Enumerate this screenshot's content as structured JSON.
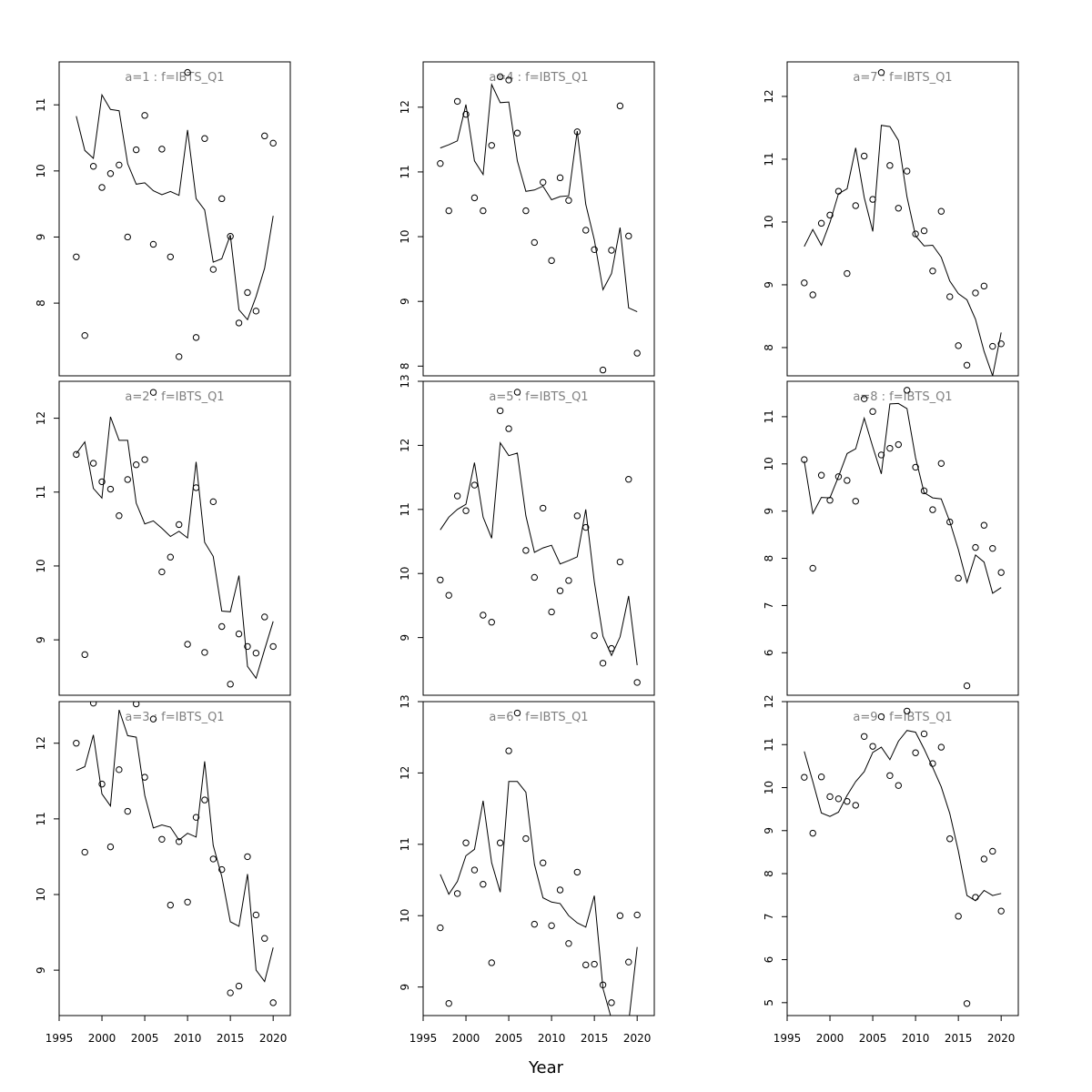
{
  "figure": {
    "xlabel": "Year",
    "colors": {
      "title": "#808080",
      "line": "#000000",
      "points": "#000000"
    }
  },
  "chart_data": [
    {
      "type": "scatter",
      "title": "a=1 : f=IBTS_Q1",
      "x": [
        1997,
        1998,
        1999,
        2000,
        2001,
        2002,
        2003,
        2004,
        2005,
        2006,
        2007,
        2008,
        2009,
        2010,
        2011,
        2012,
        2013,
        2014,
        2015,
        2016,
        2017,
        2018,
        2019,
        2020
      ],
      "ylim": [
        6.9,
        11.65
      ],
      "yticks": [
        8,
        9,
        10,
        11
      ],
      "series": [
        {
          "kind": "line",
          "values": [
            10.83,
            10.31,
            10.19,
            11.15,
            10.93,
            10.91,
            10.11,
            9.8,
            9.82,
            9.7,
            9.64,
            9.69,
            9.63,
            10.62,
            9.58,
            9.41,
            8.62,
            8.67,
            9.03,
            7.9,
            7.75,
            8.1,
            8.53,
            9.32
          ]
        },
        {
          "kind": "points",
          "values": [
            8.7,
            7.51,
            10.07,
            9.75,
            9.96,
            10.09,
            9.0,
            10.32,
            10.84,
            8.89,
            10.33,
            8.7,
            7.19,
            11.49,
            7.48,
            10.49,
            8.51,
            9.58,
            9.01,
            7.7,
            8.16,
            7.88,
            10.53,
            10.42
          ]
        }
      ]
    },
    {
      "type": "scatter",
      "title": "a=2 : f=IBTS_Q1",
      "x": [
        1997,
        1998,
        1999,
        2000,
        2001,
        2002,
        2003,
        2004,
        2005,
        2006,
        2007,
        2008,
        2009,
        2010,
        2011,
        2012,
        2013,
        2014,
        2015,
        2016,
        2017,
        2018,
        2019,
        2020
      ],
      "ylim": [
        8.25,
        12.5
      ],
      "yticks": [
        9,
        10,
        11,
        12
      ],
      "series": [
        {
          "kind": "line",
          "values": [
            11.52,
            11.68,
            11.05,
            10.92,
            12.02,
            11.7,
            11.7,
            10.85,
            10.57,
            10.61,
            10.51,
            10.4,
            10.47,
            10.38,
            11.41,
            10.32,
            10.13,
            9.39,
            9.38,
            9.87,
            8.64,
            8.48,
            8.87,
            9.25
          ]
        },
        {
          "kind": "points",
          "values": [
            11.51,
            8.8,
            11.39,
            11.14,
            11.04,
            10.68,
            11.17,
            11.37,
            11.44,
            12.35,
            9.92,
            10.12,
            10.56,
            8.94,
            11.06,
            8.83,
            10.87,
            9.18,
            8.4,
            9.08,
            8.91,
            8.82,
            9.31,
            8.91
          ]
        }
      ]
    },
    {
      "type": "scatter",
      "title": "a=3 : f=IBTS_Q1",
      "x": [
        1997,
        1998,
        1999,
        2000,
        2001,
        2002,
        2003,
        2004,
        2005,
        2006,
        2007,
        2008,
        2009,
        2010,
        2011,
        2012,
        2013,
        2014,
        2015,
        2016,
        2017,
        2018,
        2019,
        2020
      ],
      "ylim": [
        8.4,
        12.55
      ],
      "yticks": [
        9,
        10,
        11,
        12
      ],
      "series": [
        {
          "kind": "line",
          "values": [
            11.64,
            11.69,
            12.11,
            11.33,
            11.17,
            12.44,
            12.1,
            12.08,
            11.31,
            10.88,
            10.92,
            10.89,
            10.72,
            10.81,
            10.76,
            11.76,
            10.65,
            10.24,
            9.64,
            9.58,
            10.27,
            9.0,
            8.85,
            9.3
          ]
        },
        {
          "kind": "points",
          "values": [
            12.0,
            10.56,
            12.53,
            11.46,
            10.63,
            11.65,
            11.1,
            12.52,
            11.55,
            12.32,
            10.73,
            9.86,
            10.7,
            9.9,
            11.02,
            11.25,
            10.47,
            10.33,
            8.7,
            8.79,
            10.5,
            9.73,
            9.42,
            8.57
          ]
        }
      ]
    },
    {
      "type": "scatter",
      "title": "a=4 : f=IBTS_Q1",
      "x": [
        1997,
        1998,
        1999,
        2000,
        2001,
        2002,
        2003,
        2004,
        2005,
        2006,
        2007,
        2008,
        2009,
        2010,
        2011,
        2012,
        2013,
        2014,
        2015,
        2016,
        2017,
        2018,
        2019,
        2020
      ],
      "ylim": [
        7.85,
        12.7
      ],
      "yticks": [
        8,
        9,
        10,
        11,
        12
      ],
      "series": [
        {
          "kind": "line",
          "values": [
            11.37,
            11.42,
            11.48,
            12.04,
            11.17,
            10.96,
            12.35,
            12.07,
            12.08,
            11.17,
            10.7,
            10.72,
            10.78,
            10.57,
            10.62,
            10.63,
            11.63,
            10.5,
            9.95,
            9.18,
            9.43,
            10.14,
            8.9,
            8.84
          ]
        },
        {
          "kind": "points",
          "values": [
            11.13,
            10.4,
            12.09,
            11.89,
            10.6,
            10.4,
            11.41,
            12.47,
            12.42,
            11.6,
            10.4,
            9.91,
            10.84,
            9.63,
            10.91,
            10.56,
            11.62,
            10.1,
            9.8,
            7.94,
            9.79,
            12.02,
            10.01,
            8.2
          ]
        }
      ]
    },
    {
      "type": "scatter",
      "title": "a=5 : f=IBTS_Q1",
      "x": [
        1997,
        1998,
        1999,
        2000,
        2001,
        2002,
        2003,
        2004,
        2005,
        2006,
        2007,
        2008,
        2009,
        2010,
        2011,
        2012,
        2013,
        2014,
        2015,
        2016,
        2017,
        2018,
        2019,
        2020
      ],
      "ylim": [
        8.1,
        13.0
      ],
      "yticks": [
        9,
        10,
        11,
        12,
        13
      ],
      "series": [
        {
          "kind": "line",
          "values": [
            10.68,
            10.88,
            11.0,
            11.08,
            11.73,
            10.88,
            10.55,
            12.04,
            11.84,
            11.88,
            10.9,
            10.33,
            10.4,
            10.44,
            10.15,
            10.2,
            10.26,
            11.0,
            9.87,
            9.02,
            8.72,
            9.01,
            9.65,
            8.57
          ]
        },
        {
          "kind": "points",
          "values": [
            9.9,
            9.66,
            11.21,
            10.98,
            11.38,
            9.35,
            9.24,
            12.54,
            12.26,
            12.83,
            10.36,
            9.94,
            11.02,
            9.4,
            9.73,
            9.89,
            10.9,
            10.72,
            9.03,
            8.6,
            8.83,
            10.18,
            11.47,
            8.3
          ]
        }
      ]
    },
    {
      "type": "scatter",
      "title": "a=6 : f=IBTS_Q1",
      "x": [
        1997,
        1998,
        1999,
        2000,
        2001,
        2002,
        2003,
        2004,
        2005,
        2006,
        2007,
        2008,
        2009,
        2010,
        2011,
        2012,
        2013,
        2014,
        2015,
        2016,
        2017,
        2018,
        2019,
        2020
      ],
      "ylim": [
        8.6,
        13.0
      ],
      "yticks": [
        9,
        10,
        11,
        12,
        13
      ],
      "series": [
        {
          "kind": "line",
          "values": [
            10.58,
            10.3,
            10.48,
            10.84,
            10.93,
            11.61,
            10.74,
            10.33,
            11.88,
            11.88,
            11.73,
            10.72,
            10.25,
            10.19,
            10.17,
            10.0,
            9.9,
            9.84,
            10.28,
            8.98,
            8.55,
            8.17,
            8.5,
            9.56
          ]
        },
        {
          "kind": "points",
          "values": [
            9.83,
            8.77,
            10.31,
            11.02,
            10.64,
            10.44,
            9.34,
            11.02,
            12.31,
            12.84,
            11.08,
            9.88,
            10.74,
            9.86,
            10.36,
            9.61,
            10.61,
            9.31,
            9.32,
            9.03,
            8.78,
            10.0,
            9.35,
            10.01
          ]
        }
      ]
    },
    {
      "type": "scatter",
      "title": "a=7 : f=IBTS_Q1",
      "x": [
        1997,
        1998,
        1999,
        2000,
        2001,
        2002,
        2003,
        2004,
        2005,
        2006,
        2007,
        2008,
        2009,
        2010,
        2011,
        2012,
        2013,
        2014,
        2015,
        2016,
        2017,
        2018,
        2019,
        2020
      ],
      "ylim": [
        7.55,
        12.55
      ],
      "yticks": [
        8,
        9,
        10,
        11,
        12
      ],
      "series": [
        {
          "kind": "line",
          "values": [
            9.61,
            9.88,
            9.63,
            9.99,
            10.45,
            10.53,
            11.18,
            10.39,
            9.85,
            11.54,
            11.52,
            11.3,
            10.4,
            9.78,
            9.62,
            9.63,
            9.44,
            9.06,
            8.86,
            8.76,
            8.45,
            7.94,
            7.55,
            8.24
          ]
        },
        {
          "kind": "points",
          "values": [
            9.03,
            8.84,
            9.98,
            10.11,
            10.49,
            9.18,
            10.26,
            11.05,
            10.36,
            12.38,
            10.9,
            10.22,
            10.81,
            9.81,
            9.86,
            9.22,
            10.17,
            8.81,
            8.03,
            7.72,
            8.87,
            8.98,
            8.02,
            8.06
          ]
        }
      ]
    },
    {
      "type": "scatter",
      "title": "a=8 : f=IBTS_Q1",
      "x": [
        1997,
        1998,
        1999,
        2000,
        2001,
        2002,
        2003,
        2004,
        2005,
        2006,
        2007,
        2008,
        2009,
        2010,
        2011,
        2012,
        2013,
        2014,
        2015,
        2016,
        2017,
        2018,
        2019,
        2020
      ],
      "ylim": [
        5.1,
        11.75
      ],
      "yticks": [
        6,
        7,
        8,
        9,
        10,
        11
      ],
      "series": [
        {
          "kind": "line",
          "values": [
            10.06,
            8.95,
            9.29,
            9.28,
            9.73,
            10.22,
            10.32,
            10.97,
            10.36,
            9.79,
            11.27,
            11.28,
            11.17,
            10.13,
            9.39,
            9.28,
            9.26,
            8.78,
            8.19,
            7.49,
            8.07,
            7.92,
            7.26,
            7.38
          ]
        },
        {
          "kind": "points",
          "values": [
            10.09,
            7.79,
            9.76,
            9.23,
            9.73,
            9.65,
            9.21,
            11.38,
            11.11,
            10.19,
            10.33,
            10.41,
            11.56,
            9.93,
            9.43,
            9.03,
            10.01,
            8.77,
            7.58,
            5.3,
            8.23,
            8.7,
            8.21,
            7.7
          ]
        }
      ]
    },
    {
      "type": "scatter",
      "title": "a=9 : f=IBTS_Q1",
      "x": [
        1997,
        1998,
        1999,
        2000,
        2001,
        2002,
        2003,
        2004,
        2005,
        2006,
        2007,
        2008,
        2009,
        2010,
        2011,
        2012,
        2013,
        2014,
        2015,
        2016,
        2017,
        2018,
        2019,
        2020
      ],
      "ylim": [
        4.7,
        12.0
      ],
      "yticks": [
        5,
        6,
        7,
        8,
        9,
        10,
        11,
        12
      ],
      "series": [
        {
          "kind": "line",
          "values": [
            10.84,
            10.14,
            9.41,
            9.33,
            9.43,
            9.82,
            10.14,
            10.37,
            10.82,
            10.94,
            10.65,
            11.08,
            11.33,
            11.29,
            10.9,
            10.47,
            10.02,
            9.4,
            8.53,
            7.49,
            7.37,
            7.61,
            7.49,
            7.54
          ]
        },
        {
          "kind": "points",
          "values": [
            10.24,
            8.94,
            10.25,
            9.79,
            9.74,
            9.68,
            9.59,
            11.19,
            10.96,
            11.65,
            10.28,
            10.05,
            11.78,
            10.81,
            11.25,
            10.56,
            10.94,
            8.81,
            7.01,
            4.98,
            7.45,
            8.34,
            8.52,
            7.13
          ]
        }
      ]
    }
  ]
}
